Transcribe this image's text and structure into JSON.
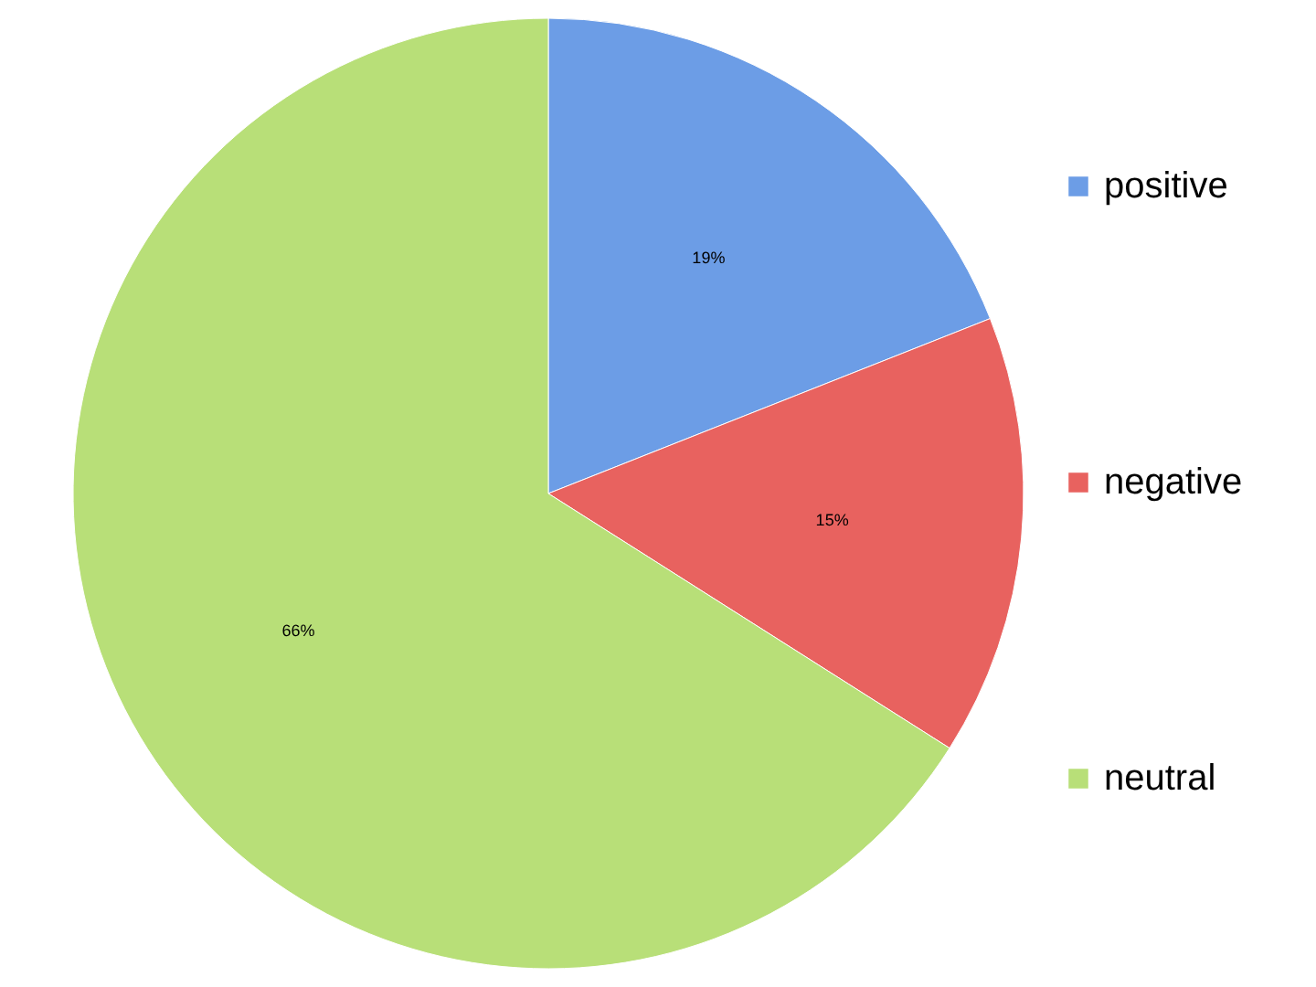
{
  "chart_data": {
    "type": "pie",
    "categories": [
      "positive",
      "negative",
      "neutral"
    ],
    "values": [
      19,
      15,
      66
    ],
    "colors": [
      "#6c9de6",
      "#e8625f",
      "#b8df78"
    ],
    "value_labels": [
      "19%",
      "15%",
      "66%"
    ],
    "legend": "right"
  }
}
